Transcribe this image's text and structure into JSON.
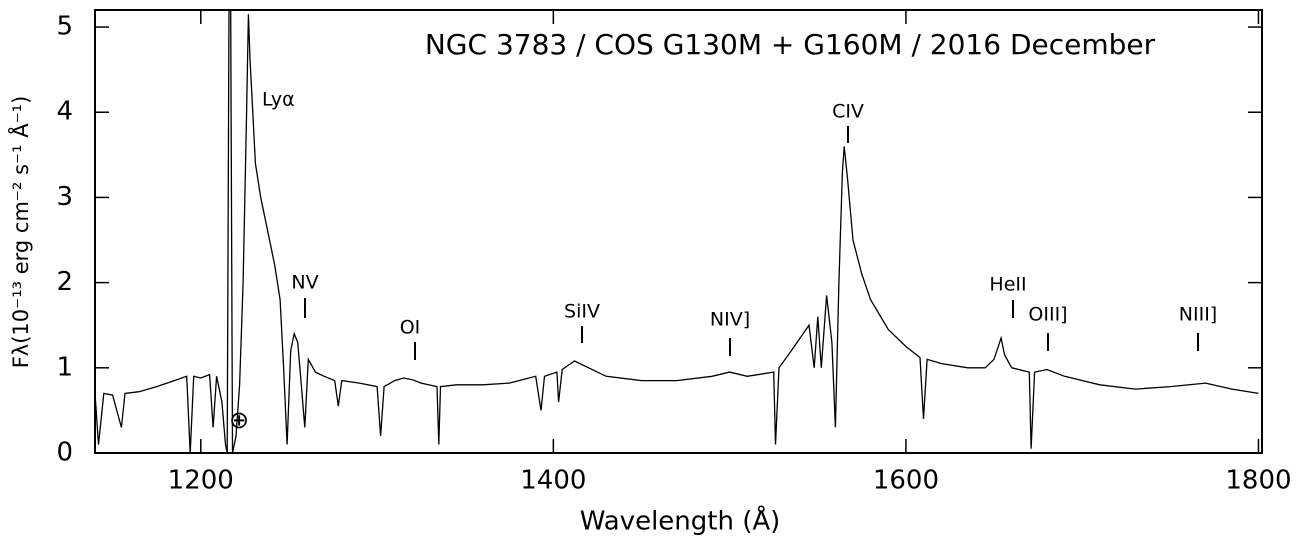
{
  "chart_data": {
    "type": "line",
    "title": "NGC 3783 / COS G130M + G160M / 2016 December",
    "x_label": "Wavelength (Å)",
    "y_label": "Fλ(10⁻¹³ erg cm⁻² s⁻¹ Å⁻¹)",
    "annotations": [
      "Lyα",
      "NV",
      "OI",
      "SiIV",
      "NIV]",
      "CIV",
      "HeII",
      "OIII]",
      "NIII]",
      "⊕"
    ],
    "color": "#000000",
    "xlim": [
      1140,
      1802
    ],
    "ylim": [
      0,
      5.2
    ],
    "xticks": [
      1200,
      1400,
      1600,
      1800
    ],
    "yticks": [
      0,
      1,
      2,
      3,
      4,
      5
    ],
    "x": [
      1140,
      1142,
      1145,
      1150,
      1155,
      1157,
      1165,
      1175,
      1185,
      1192,
      1194,
      1196,
      1200,
      1205,
      1207,
      1209,
      1212,
      1214,
      1215,
      1216,
      1217,
      1218,
      1220,
      1222,
      1224,
      1226,
      1227,
      1228,
      1229,
      1231,
      1234,
      1238,
      1242,
      1245,
      1247,
      1249,
      1251,
      1253,
      1255,
      1257,
      1259,
      1261,
      1265,
      1270,
      1276,
      1278,
      1280,
      1290,
      1300,
      1302,
      1304,
      1310,
      1315,
      1320,
      1325,
      1334,
      1335,
      1336,
      1345,
      1360,
      1375,
      1390,
      1393,
      1395,
      1402,
      1403,
      1405,
      1412,
      1420,
      1430,
      1450,
      1470,
      1490,
      1500,
      1510,
      1525,
      1526,
      1528,
      1535,
      1545,
      1548,
      1550,
      1552,
      1555,
      1558,
      1560,
      1562,
      1564,
      1565,
      1567,
      1570,
      1575,
      1580,
      1590,
      1600,
      1608,
      1610,
      1612,
      1620,
      1635,
      1645,
      1650,
      1654,
      1656,
      1660,
      1670,
      1671,
      1673,
      1680,
      1690,
      1710,
      1730,
      1750,
      1770,
      1785,
      1800
    ],
    "values": [
      0.7,
      0.1,
      0.7,
      0.68,
      0.3,
      0.7,
      0.72,
      0.78,
      0.85,
      0.9,
      0.0,
      0.9,
      0.88,
      0.92,
      0.3,
      0.9,
      0.6,
      0.1,
      0.0,
      5.2,
      5.2,
      0.0,
      0.2,
      0.8,
      2.0,
      4.0,
      5.15,
      4.6,
      4.2,
      3.4,
      3.0,
      2.6,
      2.2,
      1.8,
      1.0,
      0.1,
      1.2,
      1.4,
      1.3,
      0.8,
      0.3,
      1.1,
      0.95,
      0.9,
      0.85,
      0.55,
      0.85,
      0.82,
      0.78,
      0.2,
      0.78,
      0.85,
      0.88,
      0.86,
      0.82,
      0.78,
      0.1,
      0.78,
      0.8,
      0.8,
      0.82,
      0.9,
      0.5,
      0.9,
      0.95,
      0.6,
      0.98,
      1.08,
      1.0,
      0.9,
      0.85,
      0.85,
      0.9,
      0.95,
      0.9,
      0.95,
      0.1,
      1.0,
      1.2,
      1.5,
      1.0,
      1.6,
      1.0,
      1.85,
      1.3,
      0.3,
      2.0,
      3.3,
      3.6,
      3.2,
      2.5,
      2.1,
      1.8,
      1.45,
      1.25,
      1.12,
      0.4,
      1.1,
      1.05,
      1.0,
      1.0,
      1.1,
      1.35,
      1.15,
      1.0,
      0.95,
      0.05,
      0.95,
      0.98,
      0.9,
      0.8,
      0.75,
      0.78,
      0.82,
      0.75,
      0.7
    ]
  }
}
